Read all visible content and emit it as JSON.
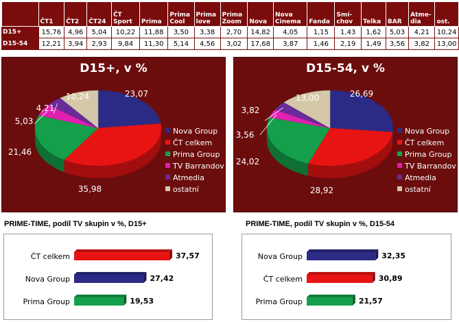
{
  "table": {
    "columns": [
      "ČT1",
      "ČT2",
      "ČT24",
      "ČT Sport",
      "Prima",
      "Prima Cool",
      "Prima love",
      "Prima Zoom",
      "Nova",
      "Nova Cinema",
      "Fanda",
      "Smí-chov",
      "Telka",
      "BAR",
      "Atme-dia",
      "ost."
    ],
    "rows": [
      {
        "label": "D15+",
        "values": [
          "15,76",
          "4,96",
          "5,04",
          "10,22",
          "11,88",
          "3,50",
          "3,38",
          "2,70",
          "14,82",
          "4,05",
          "1,15",
          "1,43",
          "1,62",
          "5,03",
          "4,21",
          "10,24"
        ]
      },
      {
        "label": "D15-54",
        "values": [
          "12,21",
          "3,94",
          "2,93",
          "9,84",
          "11,30",
          "5,14",
          "4,56",
          "3,02",
          "17,68",
          "3,87",
          "1,46",
          "2,19",
          "1,49",
          "3,56",
          "3,82",
          "13,00"
        ]
      }
    ]
  },
  "colors": {
    "nova": "#2b2b86",
    "ct": "#e81414",
    "prima": "#14a04a",
    "barrandov": "#e020b0",
    "atmedia": "#6a2a9a",
    "ostatni": "#d4c8a8",
    "panel": "#6b0d0d",
    "header": "#7a0c0c"
  },
  "chart_data": [
    {
      "type": "pie",
      "title": "D15+, v %",
      "legend": [
        "Nova Group",
        "ČT celkem",
        "Prima Group",
        "TV Barrandov",
        "Atmedia",
        "ostatní"
      ],
      "values": [
        23.07,
        35.98,
        21.46,
        5.03,
        4.21,
        10.24
      ],
      "labels": [
        "23,07",
        "35,98",
        "21,46",
        "5,03",
        "4,21",
        "10,24"
      ],
      "legend_position": "right"
    },
    {
      "type": "pie",
      "title": "D15-54, v %",
      "legend": [
        "Nova Group",
        "ČT celkem",
        "Prima Group",
        "TV Barrandov",
        "Atmedia",
        "ostatní"
      ],
      "values": [
        26.69,
        28.92,
        24.02,
        3.56,
        3.82,
        13.0
      ],
      "labels": [
        "26,69",
        "28,92",
        "24,02",
        "3,56",
        "3,82",
        "13,00"
      ],
      "legend_position": "right"
    },
    {
      "type": "bar",
      "title": "PRIME-TIME, podíl TV skupin v %, D15+",
      "categories": [
        "ČT celkem",
        "Nova Group",
        "Prima Group"
      ],
      "values": [
        37.57,
        27.42,
        19.53
      ],
      "labels": [
        "37,57",
        "27,42",
        "19,53"
      ],
      "colors": [
        "#e81414",
        "#2b2b86",
        "#14a04a"
      ],
      "orientation": "horizontal"
    },
    {
      "type": "bar",
      "title": "PRIME-TIME, podíl TV skupin v %, D15-54",
      "categories": [
        "Nova Group",
        "ČT celkem",
        "Prima Group"
      ],
      "values": [
        32.35,
        30.89,
        21.57
      ],
      "labels": [
        "32,35",
        "30,89",
        "21,57"
      ],
      "colors": [
        "#2b2b86",
        "#e81414",
        "#14a04a"
      ],
      "orientation": "horizontal"
    }
  ]
}
